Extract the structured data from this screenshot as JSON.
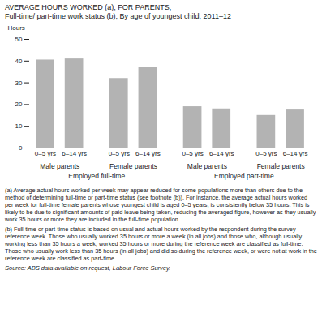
{
  "chart_data": {
    "type": "bar",
    "title": "AVERAGE HOURS WORKED (a), FOR PARENTS,",
    "subtitle": "Full-time/ part-time work status (b), By age of youngest child, 2011–12",
    "ylabel": "Hours",
    "categories": [
      "0–5 yrs",
      "6–14 yrs",
      "0–5 yrs",
      "6–14 yrs",
      "0–5 yrs",
      "6–14 yrs",
      "0–5 yrs",
      "6–14 yrs"
    ],
    "values": [
      40.5,
      41.0,
      32.0,
      37.0,
      19.0,
      18.0,
      15.0,
      17.5
    ],
    "color": "#b3b3b3",
    "groups": [
      "Male parents",
      "Female parents",
      "Male parents",
      "Female parents"
    ],
    "sections": [
      "Employed full-time",
      "Employed part-time"
    ],
    "ylim": [
      0,
      50
    ],
    "yticks": [
      0,
      10,
      20,
      30,
      40,
      50
    ],
    "notes": [
      "(a) Average actual hours worked per week may appear reduced for some populations more than others due to the method of determining full-time or part-time status (see footnote (b)). For instance, the average actual hours worked per week for full-time female parents whose youngest child is aged 0–5 years, is consistently below 35 hours. This is likely to be due to significant amounts of paid leave being taken, reducing the averaged figure, however as they usually work 35 hours or more they are included in the full-time population.",
      "(b) Full-time or part-time status is based on usual and actual hours worked by the respondent during the survey reference week. Those who usually worked 35 hours or more a week (in all jobs) and those who, although usually working less than 35 hours a week, worked 35 hours or more during the reference week are classified as full-time. Those who usually work less than 35 hours (in all jobs) and did so during the reference week, or were not at work in the reference week are classified as part-time."
    ],
    "source": "Source: ABS data available on request, Labour Force Survey."
  }
}
